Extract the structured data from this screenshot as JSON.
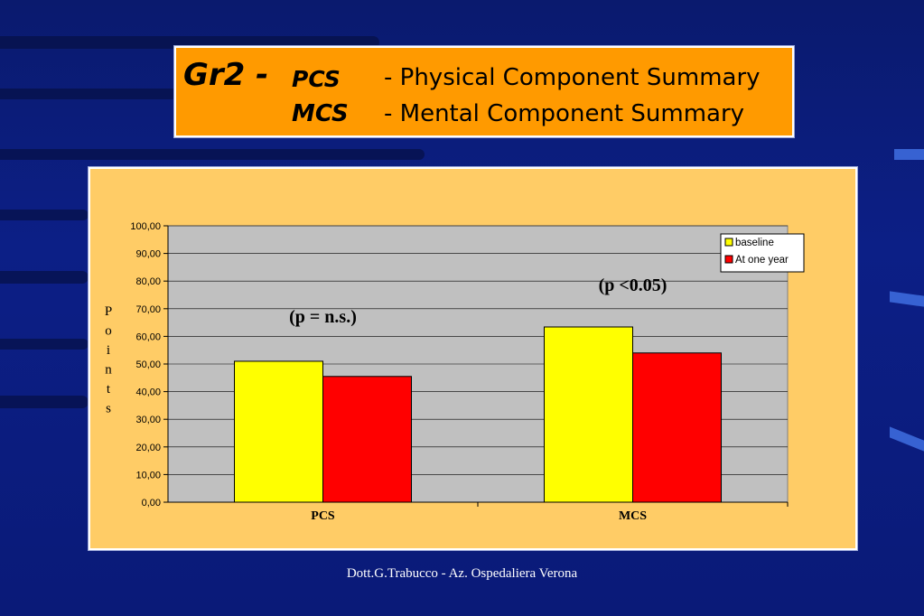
{
  "title": {
    "group": "Gr2 -",
    "line1_abbr": "PCS",
    "line1_desc": "- Physical Component Summary",
    "line2_abbr": "MCS",
    "line2_desc": "- Mental Component Summary"
  },
  "footer": "Dott.G.Trabucco - Az. Ospedaliera Verona",
  "colors": {
    "title_bg": "#ff9a00",
    "chart_bg": "#ffcc66",
    "plot_bg": "#c0c0c0",
    "baseline": "#ffff00",
    "one_year": "#ff0000"
  },
  "chart_data": {
    "type": "bar",
    "categories": [
      "PCS",
      "MCS"
    ],
    "series": [
      {
        "name": "baseline",
        "values": [
          51.0,
          63.4
        ],
        "color": "#ffff00"
      },
      {
        "name": "At one year",
        "values": [
          45.5,
          54.0
        ],
        "color": "#ff0000"
      }
    ],
    "ylabel": "Points",
    "ylim": [
      0,
      100
    ],
    "yticks": [
      "0,00",
      "10,00",
      "20,00",
      "30,00",
      "40,00",
      "50,00",
      "60,00",
      "70,00",
      "80,00",
      "90,00",
      "100,00"
    ],
    "grid": true,
    "legend": "top-right",
    "annotations": [
      {
        "text": "(p = n.s.)",
        "category": "PCS",
        "y": 65
      },
      {
        "text": "(p <0.05)",
        "category": "MCS",
        "y": 76.5
      }
    ]
  }
}
